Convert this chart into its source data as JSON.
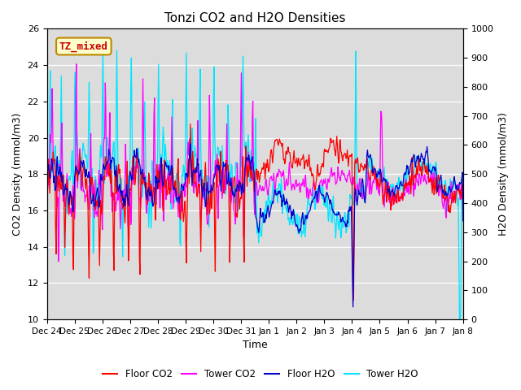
{
  "title": "Tonzi CO2 and H2O Densities",
  "xlabel": "Time",
  "ylabel_left": "CO2 Density (mmol/m3)",
  "ylabel_right": "H2O Density (mmol/m3)",
  "ylim_left": [
    10,
    26
  ],
  "ylim_right": [
    0,
    1000
  ],
  "annotation_text": "TZ_mixed",
  "annotation_fx": 0.03,
  "annotation_fy": 0.93,
  "colors": {
    "floor_co2": "#ff0000",
    "tower_co2": "#ff00ff",
    "floor_h2o": "#0000cc",
    "tower_h2o": "#00e5ff"
  },
  "legend_labels": [
    "Floor CO2",
    "Tower CO2",
    "Floor H2O",
    "Tower H2O"
  ],
  "background_color": "#dcdcdc",
  "fig_color": "#ffffff",
  "xtick_labels": [
    "Dec 24",
    "Dec 25",
    "Dec 26",
    "Dec 27",
    "Dec 28",
    "Dec 29",
    "Dec 30",
    "Dec 31",
    "Jan 1",
    "Jan 2",
    "Jan 3",
    "Jan 4",
    "Jan 5",
    "Jan 6",
    "Jan 7",
    "Jan 8"
  ],
  "left_yticks": [
    10,
    12,
    14,
    16,
    18,
    20,
    22,
    24,
    26
  ],
  "right_yticks": [
    0,
    100,
    200,
    300,
    400,
    500,
    600,
    700,
    800,
    900,
    1000
  ],
  "n_days": 15,
  "pts_per_day": 48,
  "seed": 7
}
